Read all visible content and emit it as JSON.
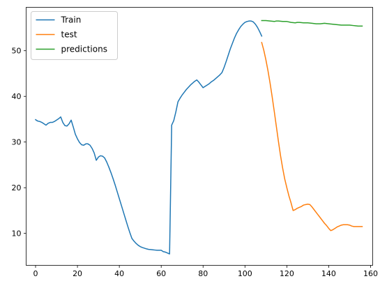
{
  "chart_data": {
    "type": "line",
    "title": "",
    "xlabel": "",
    "ylabel": "",
    "xlim": [
      -4.5,
      161
    ],
    "ylim": [
      3.0,
      59.5
    ],
    "xticks": [
      0,
      20,
      40,
      60,
      80,
      100,
      120,
      140,
      160
    ],
    "yticks": [
      10,
      20,
      30,
      40,
      50
    ],
    "grid": false,
    "legend": {
      "position": "upper-left",
      "entries": [
        "Train",
        "test",
        "predictions"
      ]
    },
    "series": [
      {
        "name": "Train",
        "color": "#1f77b4",
        "x": [
          0,
          1,
          2,
          3,
          4,
          5,
          6,
          7,
          8,
          9,
          10,
          11,
          12,
          13,
          14,
          15,
          16,
          17,
          18,
          19,
          20,
          21,
          22,
          23,
          24,
          25,
          26,
          27,
          28,
          29,
          30,
          31,
          32,
          33,
          34,
          35,
          36,
          37,
          38,
          39,
          40,
          41,
          42,
          43,
          44,
          45,
          46,
          47,
          48,
          49,
          50,
          51,
          52,
          53,
          54,
          55,
          56,
          57,
          58,
          59,
          60,
          61,
          62,
          63,
          64,
          65,
          66,
          67,
          68,
          69,
          70,
          71,
          72,
          73,
          74,
          75,
          76,
          77,
          78,
          79,
          80,
          81,
          82,
          83,
          84,
          85,
          86,
          87,
          88,
          89,
          90,
          91,
          92,
          93,
          94,
          95,
          96,
          97,
          98,
          99,
          100,
          101,
          102,
          103,
          104,
          105,
          106,
          107,
          108
        ],
        "values": [
          34.9,
          34.6,
          34.5,
          34.3,
          34.0,
          33.7,
          34.1,
          34.3,
          34.3,
          34.5,
          34.8,
          35.1,
          35.5,
          34.3,
          33.6,
          33.5,
          34.0,
          34.8,
          33.3,
          31.7,
          30.7,
          29.9,
          29.4,
          29.3,
          29.6,
          29.6,
          29.3,
          28.6,
          27.6,
          26.0,
          26.7,
          27.0,
          26.9,
          26.5,
          25.6,
          24.5,
          23.3,
          22.0,
          20.6,
          19.1,
          17.6,
          16.1,
          14.6,
          13.1,
          11.6,
          10.2,
          8.9,
          8.3,
          7.8,
          7.4,
          7.1,
          6.9,
          6.75,
          6.6,
          6.5,
          6.45,
          6.4,
          6.35,
          6.3,
          6.3,
          6.3,
          6.0,
          5.9,
          5.7,
          5.5,
          33.7,
          34.7,
          36.6,
          38.8,
          39.6,
          40.3,
          40.9,
          41.5,
          42.0,
          42.5,
          42.9,
          43.3,
          43.6,
          43.1,
          42.5,
          41.9,
          42.2,
          42.5,
          42.8,
          43.2,
          43.5,
          43.9,
          44.3,
          44.7,
          45.2,
          46.3,
          47.6,
          49.0,
          50.4,
          51.6,
          52.8,
          53.8,
          54.6,
          55.3,
          55.8,
          56.2,
          56.4,
          56.5,
          56.5,
          56.3,
          55.8,
          55.1,
          54.2,
          53.2
        ]
      },
      {
        "name": "test",
        "color": "#ff7f0e",
        "x": [
          108,
          109,
          110,
          111,
          112,
          113,
          114,
          115,
          116,
          117,
          118,
          119,
          120,
          121,
          122,
          123,
          124,
          125,
          126,
          127,
          128,
          129,
          130,
          131,
          132,
          133,
          134,
          135,
          136,
          137,
          138,
          139,
          140,
          141,
          142,
          143,
          144,
          145,
          146,
          147,
          148,
          149,
          150,
          151,
          152,
          153,
          154,
          155,
          156
        ],
        "values": [
          51.8,
          50.1,
          48.0,
          45.6,
          42.9,
          39.9,
          36.7,
          33.4,
          30.1,
          27.0,
          24.3,
          21.9,
          20.0,
          18.2,
          16.7,
          15.0,
          15.2,
          15.5,
          15.7,
          15.9,
          16.2,
          16.3,
          16.4,
          16.3,
          15.8,
          15.2,
          14.6,
          14.0,
          13.4,
          12.8,
          12.2,
          11.7,
          11.1,
          10.6,
          10.8,
          11.1,
          11.4,
          11.6,
          11.8,
          11.9,
          11.9,
          11.9,
          11.8,
          11.6,
          11.5,
          11.5,
          11.5,
          11.5,
          11.5
        ]
      },
      {
        "name": "predictions",
        "color": "#2ca02c",
        "x": [
          108,
          110,
          112,
          114,
          115,
          116,
          118,
          120,
          122,
          124,
          125,
          126,
          128,
          130,
          132,
          134,
          136,
          138,
          140,
          142,
          144,
          146,
          147,
          148,
          150,
          152,
          154,
          156
        ],
        "values": [
          56.6,
          56.6,
          56.5,
          56.4,
          56.5,
          56.5,
          56.4,
          56.4,
          56.2,
          56.1,
          56.2,
          56.2,
          56.1,
          56.1,
          56.0,
          55.9,
          55.9,
          56.0,
          55.9,
          55.8,
          55.7,
          55.6,
          55.6,
          55.6,
          55.6,
          55.5,
          55.4,
          55.4
        ]
      }
    ]
  }
}
